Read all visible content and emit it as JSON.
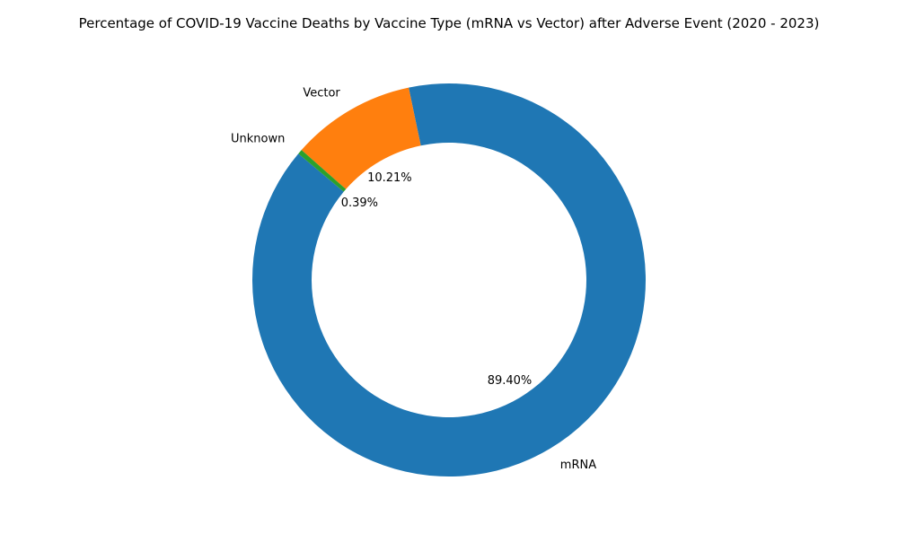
{
  "chart_data": {
    "type": "pie",
    "style": "donut",
    "title": "Percentage of COVID-19 Vaccine Deaths by Vaccine Type (mRNA vs Vector) after Adverse Event (2020 - 2023)",
    "categories": [
      "mRNA",
      "Vector",
      "Unknown"
    ],
    "values": [
      89.4,
      10.21,
      0.39
    ],
    "value_labels": [
      "89.40%",
      "10.21%",
      "0.39%"
    ],
    "colors": [
      "#1f77b4",
      "#ff7f0e",
      "#2ca02c"
    ],
    "legend": "none"
  }
}
